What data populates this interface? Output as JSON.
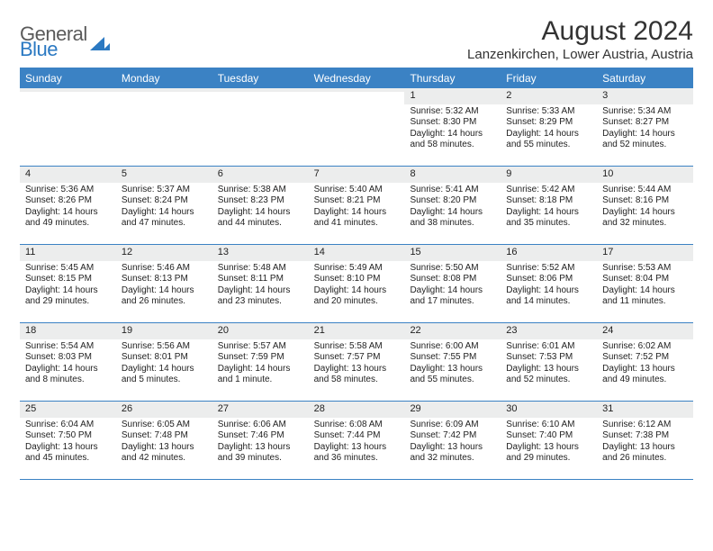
{
  "logo": {
    "text1": "General",
    "text2": "Blue"
  },
  "title": "August 2024",
  "subtitle": "Lanzenkirchen, Lower Austria, Austria",
  "colors": {
    "header_bg": "#3b82c4",
    "header_text": "#ffffff",
    "daynum_bg": "#eceded",
    "border": "#3b82c4",
    "page_bg": "#ffffff",
    "text": "#222222",
    "logo_blue": "#2b79c2",
    "logo_grey": "#5a5a5a"
  },
  "typography": {
    "title_fontsize": 30,
    "subtitle_fontsize": 15,
    "dayheader_fontsize": 12,
    "cell_fontsize": 10
  },
  "day_names": [
    "Sunday",
    "Monday",
    "Tuesday",
    "Wednesday",
    "Thursday",
    "Friday",
    "Saturday"
  ],
  "weeks": [
    [
      {
        "n": "",
        "sr": "",
        "ss": "",
        "dl": ""
      },
      {
        "n": "",
        "sr": "",
        "ss": "",
        "dl": ""
      },
      {
        "n": "",
        "sr": "",
        "ss": "",
        "dl": ""
      },
      {
        "n": "",
        "sr": "",
        "ss": "",
        "dl": ""
      },
      {
        "n": "1",
        "sr": "Sunrise: 5:32 AM",
        "ss": "Sunset: 8:30 PM",
        "dl": "Daylight: 14 hours and 58 minutes."
      },
      {
        "n": "2",
        "sr": "Sunrise: 5:33 AM",
        "ss": "Sunset: 8:29 PM",
        "dl": "Daylight: 14 hours and 55 minutes."
      },
      {
        "n": "3",
        "sr": "Sunrise: 5:34 AM",
        "ss": "Sunset: 8:27 PM",
        "dl": "Daylight: 14 hours and 52 minutes."
      }
    ],
    [
      {
        "n": "4",
        "sr": "Sunrise: 5:36 AM",
        "ss": "Sunset: 8:26 PM",
        "dl": "Daylight: 14 hours and 49 minutes."
      },
      {
        "n": "5",
        "sr": "Sunrise: 5:37 AM",
        "ss": "Sunset: 8:24 PM",
        "dl": "Daylight: 14 hours and 47 minutes."
      },
      {
        "n": "6",
        "sr": "Sunrise: 5:38 AM",
        "ss": "Sunset: 8:23 PM",
        "dl": "Daylight: 14 hours and 44 minutes."
      },
      {
        "n": "7",
        "sr": "Sunrise: 5:40 AM",
        "ss": "Sunset: 8:21 PM",
        "dl": "Daylight: 14 hours and 41 minutes."
      },
      {
        "n": "8",
        "sr": "Sunrise: 5:41 AM",
        "ss": "Sunset: 8:20 PM",
        "dl": "Daylight: 14 hours and 38 minutes."
      },
      {
        "n": "9",
        "sr": "Sunrise: 5:42 AM",
        "ss": "Sunset: 8:18 PM",
        "dl": "Daylight: 14 hours and 35 minutes."
      },
      {
        "n": "10",
        "sr": "Sunrise: 5:44 AM",
        "ss": "Sunset: 8:16 PM",
        "dl": "Daylight: 14 hours and 32 minutes."
      }
    ],
    [
      {
        "n": "11",
        "sr": "Sunrise: 5:45 AM",
        "ss": "Sunset: 8:15 PM",
        "dl": "Daylight: 14 hours and 29 minutes."
      },
      {
        "n": "12",
        "sr": "Sunrise: 5:46 AM",
        "ss": "Sunset: 8:13 PM",
        "dl": "Daylight: 14 hours and 26 minutes."
      },
      {
        "n": "13",
        "sr": "Sunrise: 5:48 AM",
        "ss": "Sunset: 8:11 PM",
        "dl": "Daylight: 14 hours and 23 minutes."
      },
      {
        "n": "14",
        "sr": "Sunrise: 5:49 AM",
        "ss": "Sunset: 8:10 PM",
        "dl": "Daylight: 14 hours and 20 minutes."
      },
      {
        "n": "15",
        "sr": "Sunrise: 5:50 AM",
        "ss": "Sunset: 8:08 PM",
        "dl": "Daylight: 14 hours and 17 minutes."
      },
      {
        "n": "16",
        "sr": "Sunrise: 5:52 AM",
        "ss": "Sunset: 8:06 PM",
        "dl": "Daylight: 14 hours and 14 minutes."
      },
      {
        "n": "17",
        "sr": "Sunrise: 5:53 AM",
        "ss": "Sunset: 8:04 PM",
        "dl": "Daylight: 14 hours and 11 minutes."
      }
    ],
    [
      {
        "n": "18",
        "sr": "Sunrise: 5:54 AM",
        "ss": "Sunset: 8:03 PM",
        "dl": "Daylight: 14 hours and 8 minutes."
      },
      {
        "n": "19",
        "sr": "Sunrise: 5:56 AM",
        "ss": "Sunset: 8:01 PM",
        "dl": "Daylight: 14 hours and 5 minutes."
      },
      {
        "n": "20",
        "sr": "Sunrise: 5:57 AM",
        "ss": "Sunset: 7:59 PM",
        "dl": "Daylight: 14 hours and 1 minute."
      },
      {
        "n": "21",
        "sr": "Sunrise: 5:58 AM",
        "ss": "Sunset: 7:57 PM",
        "dl": "Daylight: 13 hours and 58 minutes."
      },
      {
        "n": "22",
        "sr": "Sunrise: 6:00 AM",
        "ss": "Sunset: 7:55 PM",
        "dl": "Daylight: 13 hours and 55 minutes."
      },
      {
        "n": "23",
        "sr": "Sunrise: 6:01 AM",
        "ss": "Sunset: 7:53 PM",
        "dl": "Daylight: 13 hours and 52 minutes."
      },
      {
        "n": "24",
        "sr": "Sunrise: 6:02 AM",
        "ss": "Sunset: 7:52 PM",
        "dl": "Daylight: 13 hours and 49 minutes."
      }
    ],
    [
      {
        "n": "25",
        "sr": "Sunrise: 6:04 AM",
        "ss": "Sunset: 7:50 PM",
        "dl": "Daylight: 13 hours and 45 minutes."
      },
      {
        "n": "26",
        "sr": "Sunrise: 6:05 AM",
        "ss": "Sunset: 7:48 PM",
        "dl": "Daylight: 13 hours and 42 minutes."
      },
      {
        "n": "27",
        "sr": "Sunrise: 6:06 AM",
        "ss": "Sunset: 7:46 PM",
        "dl": "Daylight: 13 hours and 39 minutes."
      },
      {
        "n": "28",
        "sr": "Sunrise: 6:08 AM",
        "ss": "Sunset: 7:44 PM",
        "dl": "Daylight: 13 hours and 36 minutes."
      },
      {
        "n": "29",
        "sr": "Sunrise: 6:09 AM",
        "ss": "Sunset: 7:42 PM",
        "dl": "Daylight: 13 hours and 32 minutes."
      },
      {
        "n": "30",
        "sr": "Sunrise: 6:10 AM",
        "ss": "Sunset: 7:40 PM",
        "dl": "Daylight: 13 hours and 29 minutes."
      },
      {
        "n": "31",
        "sr": "Sunrise: 6:12 AM",
        "ss": "Sunset: 7:38 PM",
        "dl": "Daylight: 13 hours and 26 minutes."
      }
    ]
  ]
}
